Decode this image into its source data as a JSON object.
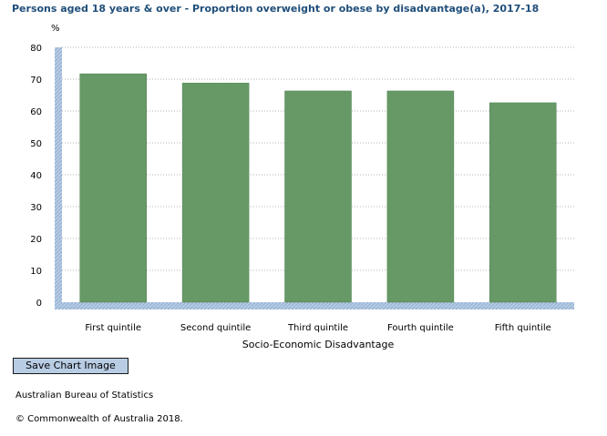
{
  "header": {
    "title": "Persons aged 18 years & over - Proportion overweight or obese by disadvantage(a), 2017-18"
  },
  "chart_data": {
    "type": "bar",
    "title": "Persons aged 18 years & over - Proportion overweight or obese by disadvantage(a), 2017-18",
    "xlabel": "Socio-Economic Disadvantage",
    "ylabel": "%",
    "ylim": [
      0,
      80
    ],
    "yticks": [
      0,
      10,
      20,
      30,
      40,
      50,
      60,
      70,
      80
    ],
    "categories": [
      "First quintile",
      "Second quintile",
      "Third quintile",
      "Fourth quintile",
      "Fifth quintile"
    ],
    "values": [
      71.7,
      68.8,
      66.3,
      66.3,
      62.6
    ],
    "bar_color": "#669966",
    "grid": true
  },
  "toolbar": {
    "save_label": "Save Chart Image"
  },
  "footer": {
    "source": "Australian Bureau of Statistics",
    "copyright": "© Commonwealth of Australia 2018."
  }
}
